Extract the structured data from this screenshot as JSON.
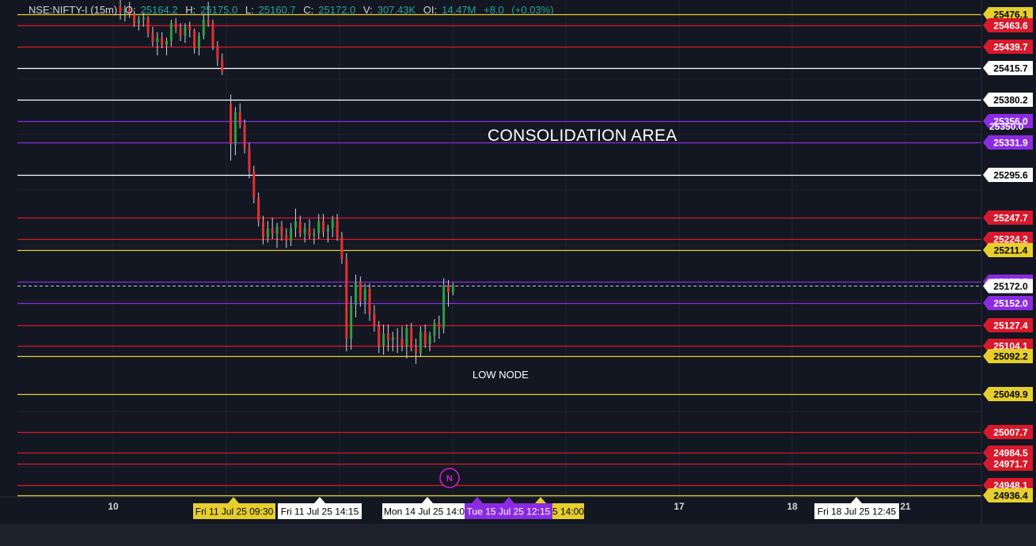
{
  "legend": {
    "symbol": "NSE:NIFTY-I (15m)",
    "o_label": "O:",
    "o": "25164.2",
    "h_label": "H:",
    "h": "25175.0",
    "l_label": "L:",
    "l": "25160.7",
    "c_label": "C:",
    "c": "25172.0",
    "v_label": "V:",
    "v": "307.43K",
    "oi_label": "OI:",
    "oi": "14.47M",
    "change": "+8.0",
    "change_pct": "(+0.03%)"
  },
  "annotations": {
    "consolidation": "CONSOLIDATION AREA",
    "low_node": "LOW NODE"
  },
  "colors": {
    "background": "#131722",
    "up": "#26a69a",
    "down": "#ef5350",
    "red_level": "#d7192b",
    "yellow_level": "#e6cf2d",
    "purple_level": "#8a2be2",
    "white_level": "#ffffff"
  },
  "chart_data": {
    "type": "candlestick",
    "title": "",
    "y_axis_position": "right",
    "ylim": [
      24920,
      25490
    ],
    "x_ticks": [
      "10",
      "17",
      "18",
      "21"
    ],
    "horizontal_levels": [
      {
        "value": 25476.1,
        "color": "yellow",
        "label": "25476.1"
      },
      {
        "value": 25463.6,
        "color": "red",
        "label": "25463.6"
      },
      {
        "value": 25439.7,
        "color": "red",
        "label": "25439.7"
      },
      {
        "value": 25415.7,
        "color": "white",
        "label": "25415.7"
      },
      {
        "value": 25380.2,
        "color": "white",
        "label": "25380.2"
      },
      {
        "value": 25356.0,
        "color": "purple",
        "label": "25356.0"
      },
      {
        "value": 25331.9,
        "color": "purple",
        "label": "25331.9"
      },
      {
        "value": 25295.6,
        "color": "white",
        "label": "25295.6"
      },
      {
        "value": 25247.7,
        "color": "red",
        "label": "25247.7"
      },
      {
        "value": 25224.2,
        "color": "red",
        "label": "25224.2"
      },
      {
        "value": 25211.4,
        "color": "yellow",
        "label": "25211.4"
      },
      {
        "value": 25175.7,
        "color": "purple",
        "label": "25175.7"
      },
      {
        "value": 25152.0,
        "color": "purple",
        "label": "25152.0"
      },
      {
        "value": 25127.4,
        "color": "red",
        "label": "25127.4"
      },
      {
        "value": 25104.1,
        "color": "red",
        "label": "25104.1"
      },
      {
        "value": 25092.2,
        "color": "yellow",
        "label": "25092.2"
      },
      {
        "value": 25049.9,
        "color": "yellow",
        "label": "25049.9"
      },
      {
        "value": 25007.7,
        "color": "red",
        "label": "25007.7"
      },
      {
        "value": 24984.5,
        "color": "red",
        "label": "24984.5"
      },
      {
        "value": 24971.7,
        "color": "red",
        "label": "24971.7"
      },
      {
        "value": 24948.1,
        "color": "red",
        "label": "24948.1"
      },
      {
        "value": 24936.4,
        "color": "yellow",
        "label": "24936.4"
      }
    ],
    "axis_plain_label": {
      "value": 25350.0,
      "label": "25350.0"
    },
    "current_price": {
      "value": 25172.0,
      "label": "25172.0"
    },
    "time_labels": [
      {
        "label": "Fri 11 Jul 25 09:30",
        "color": "yellow",
        "x": 0
      },
      {
        "label": "Fri 11 Jul 25 14:15",
        "color": "white",
        "x": 1
      },
      {
        "label": "Mon 14 Jul 25 14:0",
        "color": "white",
        "x": 2
      },
      {
        "label": "Tue 15 Jul 25 12:15",
        "color": "purple",
        "x": 3
      },
      {
        "label": "5 14:00",
        "color": "yellow",
        "x": 4
      },
      {
        "label": "Fri 18 Jul 25 12:45",
        "color": "white",
        "x": 5
      }
    ],
    "event_marker": "N",
    "candles": [
      [
        25485,
        25492,
        25470,
        25478
      ],
      [
        25478,
        25486,
        25468,
        25482
      ],
      [
        25482,
        25490,
        25472,
        25476
      ],
      [
        25476,
        25480,
        25462,
        25466
      ],
      [
        25466,
        25474,
        25458,
        25470
      ],
      [
        25470,
        25478,
        25462,
        25472
      ],
      [
        25472,
        25474,
        25450,
        25455
      ],
      [
        25455,
        25462,
        25440,
        25445
      ],
      [
        25445,
        25456,
        25430,
        25450
      ],
      [
        25450,
        25456,
        25438,
        25442
      ],
      [
        25442,
        25450,
        25430,
        25446
      ],
      [
        25446,
        25470,
        25440,
        25466
      ],
      [
        25466,
        25472,
        25455,
        25460
      ],
      [
        25460,
        25466,
        25446,
        25452
      ],
      [
        25452,
        25466,
        25444,
        25462
      ],
      [
        25462,
        25468,
        25450,
        25458
      ],
      [
        25458,
        25460,
        25432,
        25438
      ],
      [
        25438,
        25456,
        25430,
        25452
      ],
      [
        25452,
        25476,
        25448,
        25470
      ],
      [
        25470,
        25490,
        25462,
        25466
      ],
      [
        25466,
        25470,
        25436,
        25440
      ],
      [
        25440,
        25446,
        25418,
        25425
      ],
      [
        25425,
        25432,
        25408,
        25412
      ],
      [
        25375,
        25386,
        25312,
        25330
      ],
      [
        25330,
        25372,
        25318,
        25366
      ],
      [
        25366,
        25376,
        25348,
        25352
      ],
      [
        25352,
        25358,
        25320,
        25326
      ],
      [
        25326,
        25332,
        25292,
        25300
      ],
      [
        25300,
        25306,
        25264,
        25270
      ],
      [
        25270,
        25276,
        25238,
        25244
      ],
      [
        25244,
        25250,
        25218,
        25226
      ],
      [
        25226,
        25244,
        25220,
        25236
      ],
      [
        25236,
        25248,
        25224,
        25230
      ],
      [
        25230,
        25242,
        25214,
        25238
      ],
      [
        25238,
        25244,
        25222,
        25228
      ],
      [
        25228,
        25236,
        25214,
        25222
      ],
      [
        25222,
        25242,
        25216,
        25236
      ],
      [
        25236,
        25258,
        25226,
        25244
      ],
      [
        25244,
        25250,
        25226,
        25230
      ],
      [
        25230,
        25242,
        25220,
        25236
      ],
      [
        25236,
        25246,
        25224,
        25228
      ],
      [
        25228,
        25236,
        25218,
        25230
      ],
      [
        25230,
        25252,
        25224,
        25244
      ],
      [
        25244,
        25252,
        25226,
        25232
      ],
      [
        25232,
        25240,
        25220,
        25236
      ],
      [
        25236,
        25250,
        25226,
        25246
      ],
      [
        25246,
        25252,
        25222,
        25226
      ],
      [
        25226,
        25232,
        25196,
        25202
      ],
      [
        25202,
        25208,
        25098,
        25112
      ],
      [
        25112,
        25160,
        25100,
        25150
      ],
      [
        25150,
        25184,
        25136,
        25176
      ],
      [
        25176,
        25182,
        25148,
        25154
      ],
      [
        25154,
        25174,
        25140,
        25168
      ],
      [
        25168,
        25174,
        25132,
        25140
      ],
      [
        25140,
        25150,
        25120,
        25126
      ],
      [
        25126,
        25132,
        25096,
        25104
      ],
      [
        25104,
        25128,
        25094,
        25118
      ],
      [
        25118,
        25128,
        25098,
        25110
      ],
      [
        25110,
        25120,
        25098,
        25114
      ],
      [
        25114,
        25124,
        25096,
        25112
      ],
      [
        25112,
        25126,
        25098,
        25104
      ],
      [
        25104,
        25128,
        25090,
        25124
      ],
      [
        25124,
        25130,
        25098,
        25102
      ],
      [
        25102,
        25112,
        25084,
        25096
      ],
      [
        25096,
        25126,
        25092,
        25120
      ],
      [
        25120,
        25128,
        25102,
        25106
      ],
      [
        25106,
        25120,
        25098,
        25116
      ],
      [
        25116,
        25134,
        25108,
        25130
      ],
      [
        25130,
        25138,
        25112,
        25124
      ],
      [
        25124,
        25180,
        25118,
        25172
      ],
      [
        25172,
        25178,
        25148,
        25164
      ],
      [
        25164.2,
        25175.0,
        25160.7,
        25172.0
      ]
    ]
  }
}
